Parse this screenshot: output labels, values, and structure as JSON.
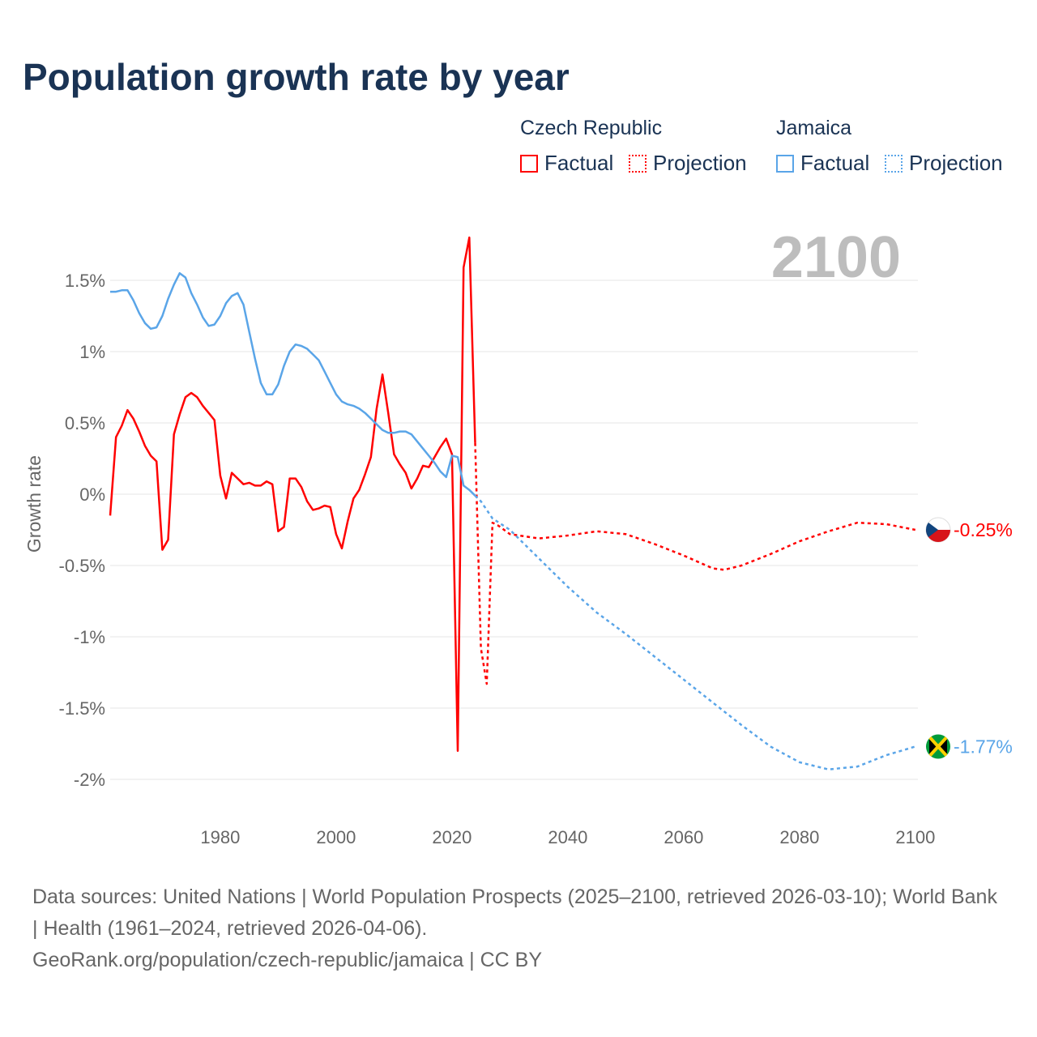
{
  "title": "Population growth rate by year",
  "legend": {
    "groups": [
      {
        "name": "Czech Republic",
        "factual": "Factual",
        "projection": "Projection",
        "color": "#ff0000"
      },
      {
        "name": "Jamaica",
        "factual": "Factual",
        "projection": "Projection",
        "color": "#5aa5e8"
      }
    ]
  },
  "source": {
    "line1": "Data sources: United Nations | World Population Prospects (2025–2100, retrieved 2026-03-10); World Bank | Health (1961–2024, retrieved 2026-04-06).",
    "line2": "GeoRank.org/population/czech-republic/jamaica | CC BY"
  },
  "chart_data": {
    "type": "line",
    "title": "Population growth rate by year",
    "xlabel": "",
    "ylabel": "Growth rate",
    "xlim": [
      1961,
      2100
    ],
    "ylim": [
      -2.2,
      1.9
    ],
    "xticks": [
      1980,
      2000,
      2020,
      2040,
      2060,
      2080,
      2100
    ],
    "yticks": [
      {
        "v": 1.5,
        "l": "1.5%"
      },
      {
        "v": 1,
        "l": "1%"
      },
      {
        "v": 0.5,
        "l": "0.5%"
      },
      {
        "v": 0,
        "l": "0%"
      },
      {
        "v": -0.5,
        "l": "-0.5%"
      },
      {
        "v": -1,
        "l": "-1%"
      },
      {
        "v": -1.5,
        "l": "-1.5%"
      },
      {
        "v": -2,
        "l": "-2%"
      }
    ],
    "year_label": "2100",
    "series": [
      {
        "name": "Czech Republic Factual",
        "color": "#ff0000",
        "dashed": false,
        "x": [
          1961,
          1962,
          1963,
          1964,
          1965,
          1966,
          1967,
          1968,
          1969,
          1970,
          1971,
          1972,
          1973,
          1974,
          1975,
          1976,
          1977,
          1978,
          1979,
          1980,
          1981,
          1982,
          1983,
          1984,
          1985,
          1986,
          1987,
          1988,
          1989,
          1990,
          1991,
          1992,
          1993,
          1994,
          1995,
          1996,
          1997,
          1998,
          1999,
          2000,
          2001,
          2002,
          2003,
          2004,
          2005,
          2006,
          2007,
          2008,
          2009,
          2010,
          2011,
          2012,
          2013,
          2014,
          2015,
          2016,
          2017,
          2018,
          2019,
          2020,
          2021,
          2022,
          2023,
          2024
        ],
        "y": [
          -0.15,
          0.4,
          0.48,
          0.59,
          0.53,
          0.44,
          0.34,
          0.27,
          0.23,
          -0.39,
          -0.32,
          0.42,
          0.56,
          0.68,
          0.71,
          0.68,
          0.62,
          0.57,
          0.52,
          0.13,
          -0.03,
          0.15,
          0.11,
          0.07,
          0.08,
          0.06,
          0.06,
          0.09,
          0.07,
          -0.26,
          -0.23,
          0.11,
          0.11,
          0.05,
          -0.05,
          -0.11,
          -0.1,
          -0.08,
          -0.09,
          -0.28,
          -0.38,
          -0.19,
          -0.03,
          0.03,
          0.14,
          0.26,
          0.6,
          0.84,
          0.57,
          0.28,
          0.21,
          0.15,
          0.04,
          0.11,
          0.2,
          0.19,
          0.26,
          0.33,
          0.39,
          0.28,
          -1.8,
          1.59,
          1.8,
          0.36
        ]
      },
      {
        "name": "Czech Republic Projection",
        "color": "#ff0000",
        "dashed": true,
        "x": [
          2024,
          2025,
          2026,
          2027,
          2028,
          2030,
          2035,
          2040,
          2045,
          2050,
          2055,
          2060,
          2065,
          2067,
          2070,
          2075,
          2080,
          2085,
          2090,
          2095,
          2100
        ],
        "y": [
          0.36,
          -1.08,
          -1.33,
          -0.2,
          -0.22,
          -0.28,
          -0.31,
          -0.29,
          -0.26,
          -0.28,
          -0.35,
          -0.43,
          -0.52,
          -0.53,
          -0.5,
          -0.42,
          -0.33,
          -0.26,
          -0.2,
          -0.21,
          -0.25
        ]
      },
      {
        "name": "Jamaica Factual",
        "color": "#5aa5e8",
        "dashed": false,
        "x": [
          1961,
          1962,
          1963,
          1964,
          1965,
          1966,
          1967,
          1968,
          1969,
          1970,
          1971,
          1972,
          1973,
          1974,
          1975,
          1976,
          1977,
          1978,
          1979,
          1980,
          1981,
          1982,
          1983,
          1984,
          1985,
          1986,
          1987,
          1988,
          1989,
          1990,
          1991,
          1992,
          1993,
          1994,
          1995,
          1996,
          1997,
          1998,
          1999,
          2000,
          2001,
          2002,
          2003,
          2004,
          2005,
          2006,
          2007,
          2008,
          2009,
          2010,
          2011,
          2012,
          2013,
          2014,
          2015,
          2016,
          2017,
          2018,
          2019,
          2020,
          2021,
          2022,
          2023,
          2024
        ],
        "y": [
          1.42,
          1.42,
          1.43,
          1.43,
          1.36,
          1.27,
          1.2,
          1.16,
          1.17,
          1.25,
          1.37,
          1.47,
          1.55,
          1.52,
          1.41,
          1.33,
          1.24,
          1.18,
          1.19,
          1.25,
          1.34,
          1.39,
          1.41,
          1.33,
          1.14,
          0.95,
          0.78,
          0.7,
          0.7,
          0.77,
          0.9,
          1.0,
          1.05,
          1.04,
          1.02,
          0.98,
          0.94,
          0.86,
          0.78,
          0.7,
          0.65,
          0.63,
          0.62,
          0.6,
          0.57,
          0.53,
          0.49,
          0.45,
          0.43,
          0.43,
          0.44,
          0.44,
          0.42,
          0.37,
          0.32,
          0.27,
          0.22,
          0.16,
          0.12,
          0.27,
          0.26,
          0.06,
          0.03,
          -0.01
        ]
      },
      {
        "name": "Jamaica Projection",
        "color": "#5aa5e8",
        "dashed": true,
        "x": [
          2024,
          2025,
          2027,
          2030,
          2035,
          2040,
          2045,
          2050,
          2055,
          2060,
          2065,
          2070,
          2075,
          2080,
          2085,
          2090,
          2095,
          2100
        ],
        "y": [
          -0.01,
          -0.05,
          -0.17,
          -0.25,
          -0.45,
          -0.65,
          -0.83,
          -0.98,
          -1.14,
          -1.3,
          -1.46,
          -1.62,
          -1.77,
          -1.88,
          -1.93,
          -1.91,
          -1.83,
          -1.77
        ]
      }
    ],
    "end_labels": [
      {
        "country": "Czech Republic",
        "value": -0.25,
        "label": "-0.25%",
        "color": "#ff0000"
      },
      {
        "country": "Jamaica",
        "value": -1.77,
        "label": "-1.77%",
        "color": "#5aa5e8"
      }
    ]
  }
}
